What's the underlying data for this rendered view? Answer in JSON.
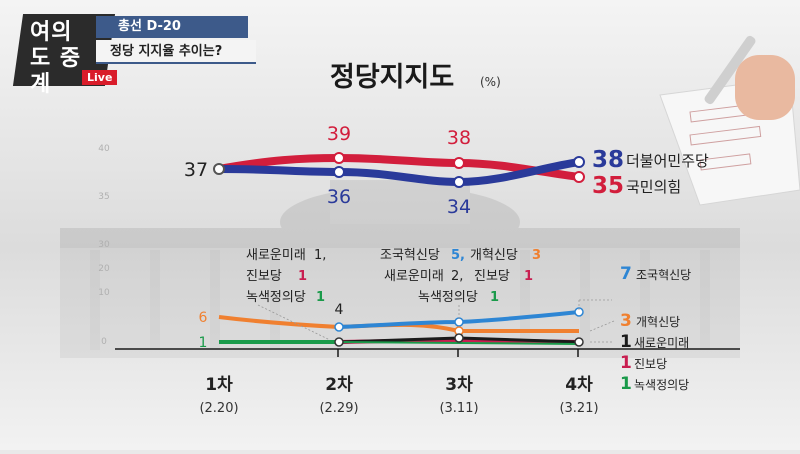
{
  "header": {
    "logo": "여의도 중계",
    "live_label": "Live",
    "subtitle": "총선 D-20",
    "caption": "정당 지지율 추이는?"
  },
  "chart_data": {
    "type": "line",
    "title": "정당지지도",
    "unit": "(%)",
    "categories": [
      "1차",
      "2차",
      "3차",
      "4차"
    ],
    "dates": [
      "(2.20)",
      "(2.29)",
      "(3.11)",
      "(3.21)"
    ],
    "yticks": [
      "40",
      "35",
      "30",
      "20",
      "10",
      "0"
    ],
    "ylim": [
      0,
      40
    ],
    "series": [
      {
        "name": "더불어민주당",
        "values": [
          37,
          36,
          34,
          38
        ],
        "color": "#2a3a9a"
      },
      {
        "name": "국민의힘",
        "values": [
          37,
          39,
          38,
          35
        ],
        "color": "#d21e3c"
      },
      {
        "name": "조국혁신당",
        "values": [
          null,
          null,
          5,
          7
        ],
        "color": "#2e86d4"
      },
      {
        "name": "개혁신당",
        "values": [
          6,
          4,
          3,
          3
        ],
        "color": "#f08030"
      },
      {
        "name": "새로운미래",
        "values": [
          1,
          1,
          2,
          1
        ],
        "color": "#2a2a2a"
      },
      {
        "name": "진보당",
        "values": [
          1,
          1,
          1,
          1
        ],
        "color": "#c81e50"
      },
      {
        "name": "녹색정의당",
        "values": [
          1,
          1,
          1,
          1
        ],
        "color": "#1a9a4a"
      }
    ],
    "point_labels": {
      "p1": "37",
      "p2_red": "39",
      "p2_blue": "36",
      "p3_red": "38",
      "p3_blue": "34",
      "p1_orange": "6",
      "p1_green": "1",
      "p2_orange": "4"
    },
    "annotations": {
      "a2_line1_name": "새로운미래",
      "a2_line1_val": "1,",
      "a2_line2_name": "진보당",
      "a2_line2_val": "1",
      "a2_line3_name": "녹색정의당",
      "a2_line3_val": "1",
      "a3_line1_name": "조국혁신당",
      "a3_line1_val": "5,",
      "a3_line1b_name": "개혁신당",
      "a3_line1b_val": "3",
      "a3_line2_name": "새로운미래",
      "a3_line2_val": "2,",
      "a3_line2b_name": "진보당",
      "a3_line2b_val": "1",
      "a3_line3_name": "녹색정의당",
      "a3_line3_val": "1"
    },
    "right_labels": {
      "dem_val": "38",
      "dem_name": "더불어민주당",
      "ppp_val": "35",
      "ppp_name": "국민의힘",
      "rebuild_val": "7",
      "rebuild_name": "조국혁신당",
      "reform_val": "3",
      "reform_name": "개혁신당",
      "newfuture_val": "1",
      "newfuture_name": "새로운미래",
      "progressive_val": "1",
      "progressive_name": "진보당",
      "green_val": "1",
      "green_name": "녹색정의당"
    }
  }
}
